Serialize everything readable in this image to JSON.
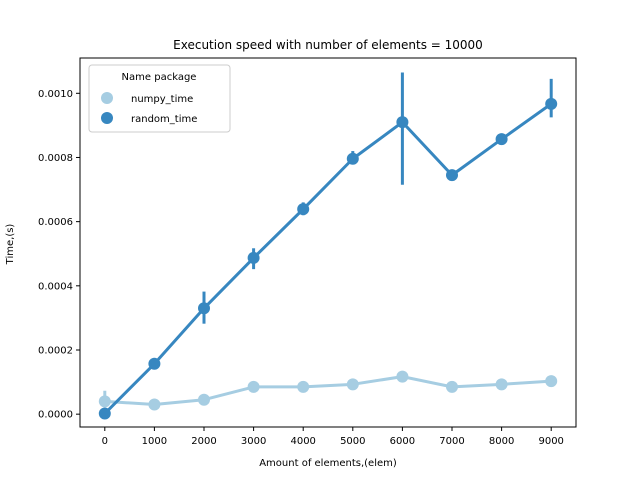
{
  "chart_data": {
    "type": "line",
    "title": "Execution speed with number of elements = 10000",
    "xlabel": "Amount of elements,(elem)",
    "ylabel": "Time,(s)",
    "categories": [
      "0",
      "1000",
      "2000",
      "3000",
      "4000",
      "5000",
      "6000",
      "7000",
      "8000",
      "9000"
    ],
    "y_ticks": [
      "0.0000",
      "0.0002",
      "0.0004",
      "0.0006",
      "0.0008",
      "0.0010"
    ],
    "y_tick_values": [
      0,
      0.0002,
      0.0004,
      0.0006,
      0.0008,
      0.001
    ],
    "ylim": [
      -4e-05,
      0.00111
    ],
    "grid": false,
    "legend": {
      "title": "Name package",
      "placement": "upper-left"
    },
    "series": [
      {
        "name": "numpy_time",
        "color": "#a6cde2",
        "values": [
          4e-05,
          3e-05,
          4.5e-05,
          8.5e-05,
          8.5e-05,
          9.3e-05,
          0.000117,
          8.5e-05,
          9.3e-05,
          0.000103
        ],
        "error_low": [
          3e-05,
          3e-05,
          4.5e-05,
          8.5e-05,
          8.5e-05,
          9.3e-05,
          0.000117,
          8.5e-05,
          9.3e-05,
          0.000103
        ],
        "error_high": [
          7.3e-05,
          3e-05,
          4.5e-05,
          8.5e-05,
          8.5e-05,
          9.3e-05,
          0.000117,
          8.5e-05,
          9.3e-05,
          0.000103
        ]
      },
      {
        "name": "random_time",
        "color": "#3787c0",
        "values": [
          2e-06,
          0.000157,
          0.00033,
          0.000487,
          0.000639,
          0.000796,
          0.00091,
          0.000745,
          0.000857,
          0.000967
        ],
        "error_low": [
          2e-06,
          0.000157,
          0.000282,
          0.000452,
          0.00062,
          0.000785,
          0.000715,
          0.000745,
          0.000857,
          0.000925
        ],
        "error_high": [
          2e-06,
          0.000157,
          0.000382,
          0.000517,
          0.00066,
          0.00082,
          0.001065,
          0.000745,
          0.000857,
          0.001045
        ]
      }
    ]
  }
}
